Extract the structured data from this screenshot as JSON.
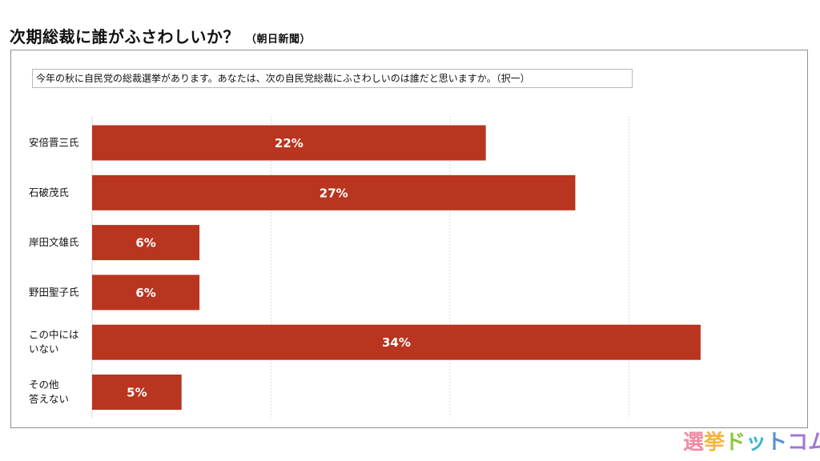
{
  "header": {
    "title": "次期総裁に誰がふさわしいか？",
    "source": "（朝日新聞）"
  },
  "question": "今年の秋に自民党の総裁選挙があります。あなたは、次の自民党総裁にふさわしいのは誰だと思いますか。（択一）",
  "logo": [
    "選",
    "挙",
    "ド",
    "ッ",
    "ト",
    "コム"
  ],
  "chart_data": {
    "type": "bar",
    "orientation": "horizontal",
    "categories": [
      [
        "安倍晋三氏"
      ],
      [
        "石破茂氏"
      ],
      [
        "岸田文雄氏"
      ],
      [
        "野田聖子氏"
      ],
      [
        "この中には",
        "いない"
      ],
      [
        "その他",
        "答えない"
      ]
    ],
    "values": [
      22,
      27,
      6,
      6,
      34,
      5
    ],
    "data_labels": [
      "22%",
      "27%",
      "6%",
      "6%",
      "34%",
      "5%"
    ],
    "xlim": [
      0,
      40
    ],
    "grid": true,
    "bar_color": "#b93520",
    "label_color": "#ffffff"
  }
}
